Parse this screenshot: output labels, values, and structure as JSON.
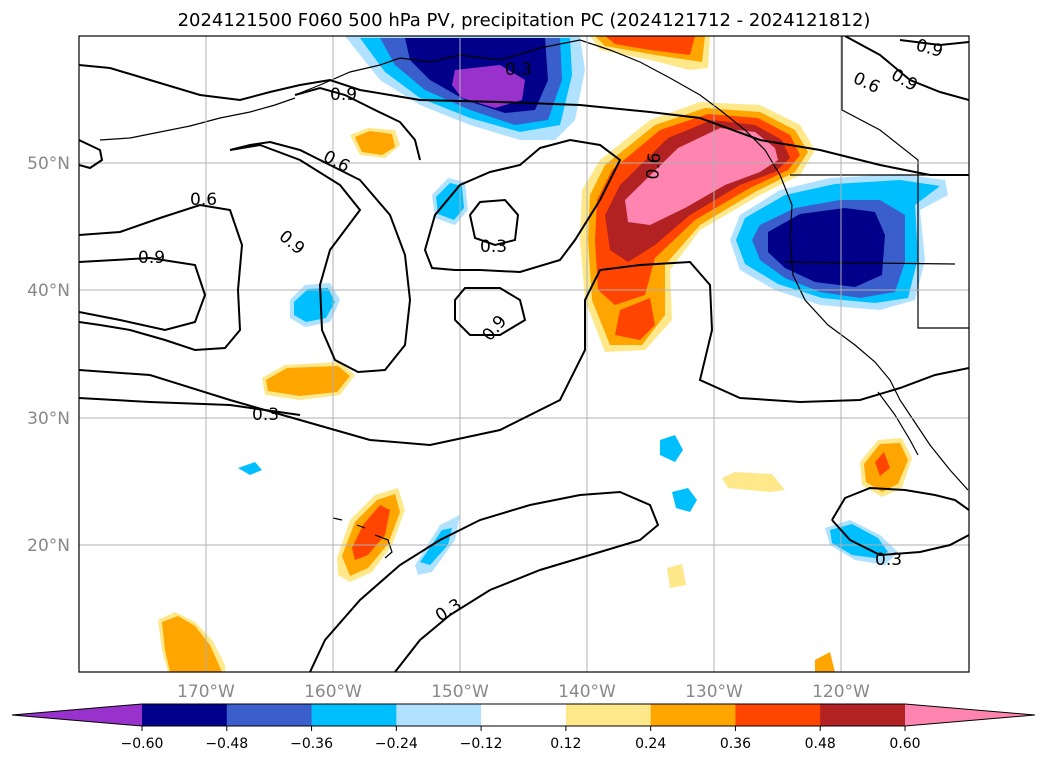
{
  "chart_data": {
    "type": "map",
    "title": "2024121500 F060 500 hPa PV, precipitation PC (2024121712 - 2024121812)",
    "map_extent": {
      "lon": [
        -180,
        -110
      ],
      "lat": [
        10,
        60
      ]
    },
    "lat_ticks": [
      "20°N",
      "30°N",
      "40°N",
      "50°N"
    ],
    "lon_ticks": [
      "170°W",
      "160°W",
      "150°W",
      "140°W",
      "130°W",
      "120°W"
    ],
    "grid": true,
    "contour_field": "500 hPa PV",
    "contour_levels": [
      0.3,
      0.6,
      0.9
    ],
    "contour_labels": [
      "0.3",
      "0.3",
      "0.3",
      "0.3",
      "0.3",
      "0.6",
      "0.6",
      "0.6",
      "0.6",
      "0.9",
      "0.9",
      "0.9",
      "0.9",
      "0.9",
      "0.9"
    ],
    "shaded_field": "precipitation PC",
    "colorbar": {
      "ticks": [
        "−0.60",
        "−0.48",
        "−0.36",
        "−0.24",
        "−0.12",
        "0.12",
        "0.24",
        "0.36",
        "0.48",
        "0.60"
      ],
      "extend": "both",
      "colors": [
        "#9932cc",
        "#00008b",
        "#3a5fcd",
        "#00bfff",
        "#b0e2ff",
        "#ffffff",
        "#ffe88a",
        "#ffa500",
        "#ff4500",
        "#b22222",
        "#ff85b0"
      ]
    }
  }
}
